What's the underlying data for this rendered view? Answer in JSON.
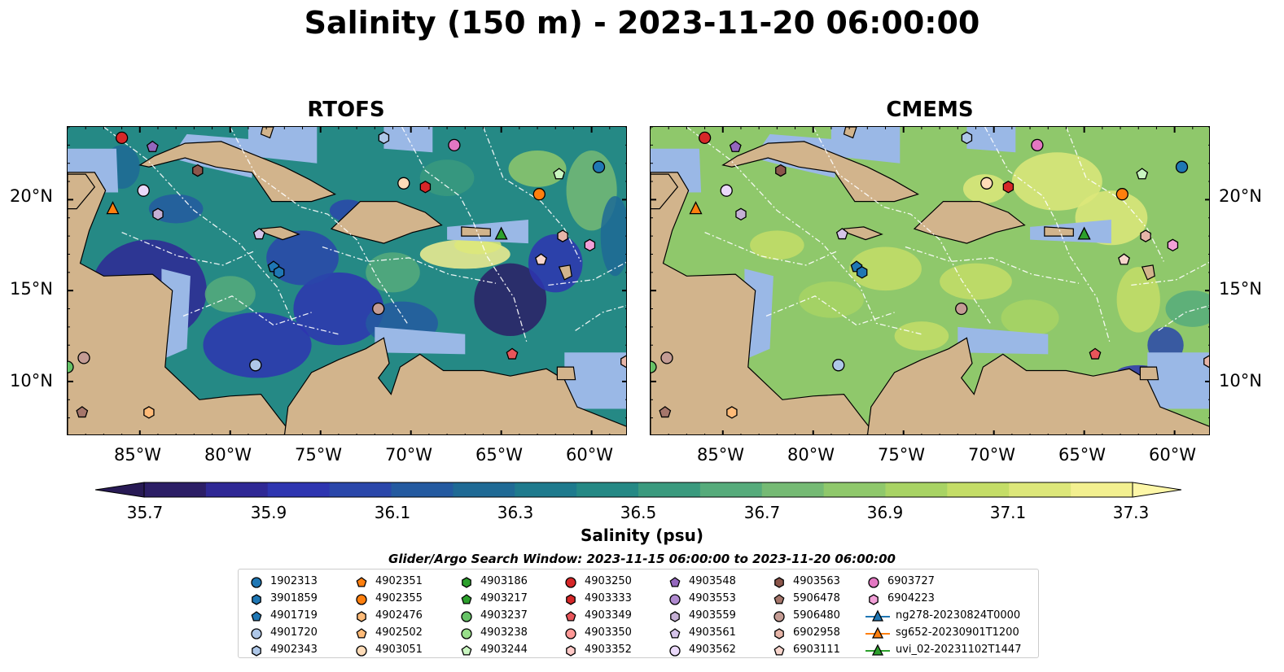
{
  "title": "Salinity (150 m) - 2023-11-20 06:00:00",
  "panels": [
    {
      "title": "RTOFS",
      "palette": "rtofs"
    },
    {
      "title": "CMEMS",
      "palette": "cmems"
    }
  ],
  "map": {
    "lon_range": [
      -89,
      -58
    ],
    "lat_range": [
      7,
      24
    ],
    "lat_ticks": [
      "20°N",
      "15°N",
      "10°N"
    ],
    "lon_ticks": [
      "85°W",
      "80°W",
      "75°W",
      "70°W",
      "65°W",
      "60°W"
    ],
    "colors": {
      "land": "#d2b48c",
      "shelf": "#9ab8e6",
      "coast": "#000000",
      "eez": "#ffffff"
    }
  },
  "colorbar": {
    "label": "Salinity (psu)",
    "ticks": [
      "35.7",
      "35.9",
      "36.1",
      "36.3",
      "36.5",
      "36.7",
      "36.9",
      "37.1",
      "37.3"
    ],
    "colors": [
      "#2c1e66",
      "#2f2895",
      "#2e35b0",
      "#2a47aa",
      "#245aa0",
      "#1f6a95",
      "#1e7a8d",
      "#258985",
      "#3a9a7e",
      "#56ab7b",
      "#75ba74",
      "#8fc86b",
      "#a8d364",
      "#c4dd67",
      "#dde77a",
      "#f3f090"
    ]
  },
  "search_window": "Glider/Argo Search Window: 2023-11-15 06:00:00 to 2023-11-20 06:00:00",
  "legend": [
    {
      "label": "1902313",
      "shape": "circle",
      "color": "#1f77b4"
    },
    {
      "label": "3901859",
      "shape": "hexagon",
      "color": "#1f77b4"
    },
    {
      "label": "4901719",
      "shape": "pentagon",
      "color": "#1f77b4"
    },
    {
      "label": "4901720",
      "shape": "circle",
      "color": "#aec7e8"
    },
    {
      "label": "4902343",
      "shape": "hexagon",
      "color": "#aec7e8"
    },
    {
      "label": "4902351",
      "shape": "pentagon",
      "color": "#ff7f0e"
    },
    {
      "label": "4902355",
      "shape": "circle",
      "color": "#ff7f0e"
    },
    {
      "label": "4902476",
      "shape": "hexagon",
      "color": "#ffbb78"
    },
    {
      "label": "4902502",
      "shape": "pentagon",
      "color": "#ffbb78"
    },
    {
      "label": "4903051",
      "shape": "circle",
      "color": "#ffdcb8"
    },
    {
      "label": "4903186",
      "shape": "hexagon",
      "color": "#2ca02c"
    },
    {
      "label": "4903217",
      "shape": "pentagon",
      "color": "#2ca02c"
    },
    {
      "label": "4903237",
      "shape": "circle",
      "color": "#66c266"
    },
    {
      "label": "4903238",
      "shape": "circle",
      "color": "#98df8a"
    },
    {
      "label": "4903244",
      "shape": "pentagon",
      "color": "#c9f5c0"
    },
    {
      "label": "4903250",
      "shape": "circle",
      "color": "#d62728"
    },
    {
      "label": "4903333",
      "shape": "hexagon",
      "color": "#d62728"
    },
    {
      "label": "4903349",
      "shape": "pentagon",
      "color": "#e8555a"
    },
    {
      "label": "4903350",
      "shape": "circle",
      "color": "#ff9896"
    },
    {
      "label": "4903352",
      "shape": "hexagon",
      "color": "#ffc9c7"
    },
    {
      "label": "4903548",
      "shape": "pentagon",
      "color": "#9467bd"
    },
    {
      "label": "4903553",
      "shape": "circle",
      "color": "#b08ad0"
    },
    {
      "label": "4903559",
      "shape": "hexagon",
      "color": "#c5b0d5"
    },
    {
      "label": "4903561",
      "shape": "pentagon",
      "color": "#d6c4ea"
    },
    {
      "label": "4903562",
      "shape": "circle",
      "color": "#ead9fa"
    },
    {
      "label": "4903563",
      "shape": "hexagon",
      "color": "#8c564b"
    },
    {
      "label": "5906478",
      "shape": "pentagon",
      "color": "#a5766b"
    },
    {
      "label": "5906480",
      "shape": "circle",
      "color": "#c49c94"
    },
    {
      "label": "6902958",
      "shape": "hexagon",
      "color": "#e7b5a8"
    },
    {
      "label": "6903111",
      "shape": "pentagon",
      "color": "#f7d5cc"
    },
    {
      "label": "6903727",
      "shape": "circle",
      "color": "#e377c2"
    },
    {
      "label": "6904223",
      "shape": "hexagon",
      "color": "#f2a0d8"
    },
    {
      "label": "ng278-20230824T0000",
      "shape": "triangle-line",
      "color": "#1f77b4"
    },
    {
      "label": "sg652-20230901T1200",
      "shape": "triangle-line",
      "color": "#ff7f0e"
    },
    {
      "label": "uvi_02-20231102T1447",
      "shape": "triangle-line",
      "color": "#2ca02c"
    }
  ],
  "markers": [
    {
      "id": "6903727",
      "lon": -67.6,
      "lat": 23.0
    },
    {
      "id": "1902313",
      "lon": -59.6,
      "lat": 21.8
    },
    {
      "id": "4903244",
      "lon": -61.8,
      "lat": 21.4
    },
    {
      "id": "4902355",
      "lon": -62.9,
      "lat": 20.3
    },
    {
      "id": "4903333",
      "lon": -69.2,
      "lat": 20.7
    },
    {
      "id": "4903051",
      "lon": -70.4,
      "lat": 20.9
    },
    {
      "id": "4902343",
      "lon": -71.5,
      "lat": 23.4
    },
    {
      "id": "4903250",
      "lon": -86.0,
      "lat": 23.4
    },
    {
      "id": "4903548",
      "lon": -84.3,
      "lat": 22.9
    },
    {
      "id": "4903563",
      "lon": -81.8,
      "lat": 21.6
    },
    {
      "id": "4903562",
      "lon": -84.8,
      "lat": 20.5
    },
    {
      "id": "4903559",
      "lon": -84.0,
      "lat": 19.2
    },
    {
      "id": "4903561",
      "lon": -78.4,
      "lat": 18.1
    },
    {
      "id": "4901719",
      "lon": -77.6,
      "lat": 16.3
    },
    {
      "id": "3901859",
      "lon": -77.3,
      "lat": 16.0
    },
    {
      "id": "6902958",
      "lon": -61.6,
      "lat": 18.0
    },
    {
      "id": "6904223",
      "lon": -60.1,
      "lat": 17.5
    },
    {
      "id": "6903111",
      "lon": -62.8,
      "lat": 16.7
    },
    {
      "id": "5906480",
      "lon": -71.8,
      "lat": 14.0
    },
    {
      "id": "4901720",
      "lon": -78.6,
      "lat": 10.9
    },
    {
      "id": "4903349",
      "lon": -64.4,
      "lat": 11.5
    },
    {
      "id": "6902958",
      "lon": -58.1,
      "lat": 11.1
    },
    {
      "id": "5906480",
      "lon": -88.1,
      "lat": 11.3
    },
    {
      "id": "4903237",
      "lon": -89.0,
      "lat": 10.8
    },
    {
      "id": "5906478",
      "lon": -88.2,
      "lat": 8.3
    },
    {
      "id": "4902476",
      "lon": -84.5,
      "lat": 8.3
    },
    {
      "id": "sg652-20230901T1200",
      "lon": -86.5,
      "lat": 19.5
    },
    {
      "id": "uvi_02-20231102T1447",
      "lon": -65.0,
      "lat": 18.1
    }
  ]
}
